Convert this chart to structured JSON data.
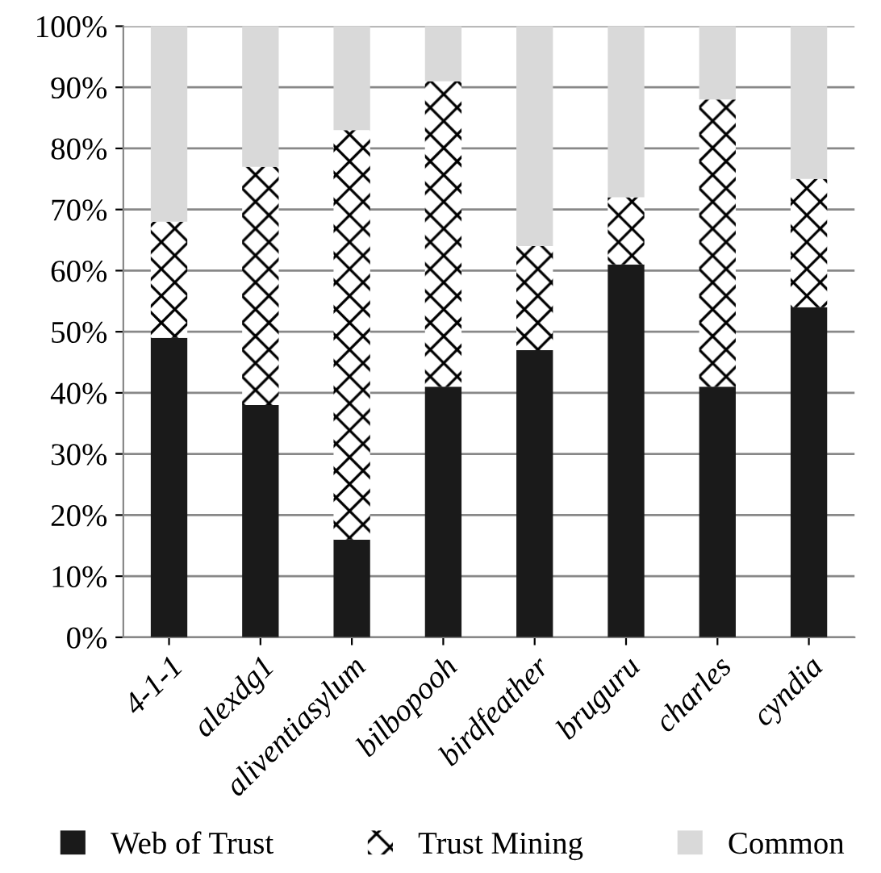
{
  "chart_data": {
    "type": "bar",
    "stacked": true,
    "categories": [
      "4-1-1",
      "alexdg1",
      "aliventiasylum",
      "bilbopooh",
      "birdfeather",
      "bruguru",
      "charles",
      "cyndia"
    ],
    "series": [
      {
        "name": "Web of Trust",
        "color": "#1a1a1a",
        "values": [
          49,
          38,
          16,
          41,
          47,
          61,
          41,
          54
        ]
      },
      {
        "name": "Trust Mining",
        "color": "#ffffff",
        "values": [
          19,
          39,
          67,
          50,
          17,
          11,
          47,
          21
        ]
      },
      {
        "name": "Common",
        "color": "#d9d9d9",
        "values": [
          32,
          23,
          17,
          9,
          36,
          28,
          12,
          25
        ]
      }
    ],
    "ylim": [
      0,
      100
    ],
    "yticks": [
      {
        "value": 0,
        "label": "0%"
      },
      {
        "value": 10,
        "label": "10%"
      },
      {
        "value": 20,
        "label": "20%"
      },
      {
        "value": 30,
        "label": "30%"
      },
      {
        "value": 40,
        "label": "40%"
      },
      {
        "value": 50,
        "label": "50%"
      },
      {
        "value": 60,
        "label": "60%"
      },
      {
        "value": 70,
        "label": "70%"
      },
      {
        "value": 80,
        "label": "80%"
      },
      {
        "value": 90,
        "label": "90%"
      },
      {
        "value": 100,
        "label": "100%"
      }
    ],
    "grid": "y",
    "legend": "bottom"
  }
}
